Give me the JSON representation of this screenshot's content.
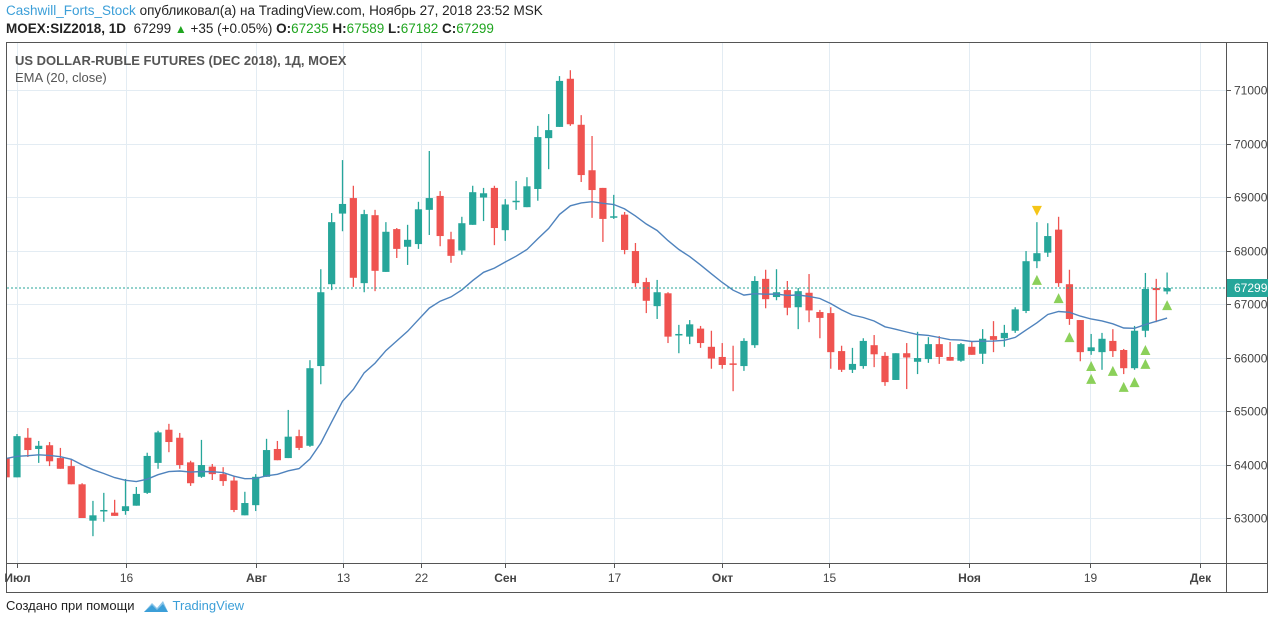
{
  "header": {
    "author": "Cashwill_Forts_Stock",
    "published_text": "опубликовал(а) на TradingView.com, Ноябрь 27, 2018 23:52 MSK",
    "symbol": "MOEX:SIZ2018, 1D",
    "last": "67299",
    "change": "+35 (+0.05%)",
    "o_label": "O:",
    "o": "67235",
    "h_label": "H:",
    "h": "67589",
    "l_label": "L:",
    "l": "67182",
    "c_label": "C:",
    "c": "67299"
  },
  "legend": {
    "title": "US DOLLAR-RUBLE FUTURES (DEC 2018), 1Д, MOEX",
    "indicator": "EMA (20, close)"
  },
  "footer": {
    "created_with": "Создано при помощи",
    "brand": "TradingView"
  },
  "colors": {
    "up": "#26a69a",
    "down": "#ef5350",
    "ema": "#4f83bd",
    "signal_up": "#8bd05a",
    "signal_down": "#f5c518",
    "grid": "#e3ecf3"
  },
  "chart_data": {
    "type": "candlestick",
    "title": "US DOLLAR-RUBLE FUTURES (DEC 2018), 1Д, MOEX",
    "ylim": [
      62300,
      71800
    ],
    "y_ticks": [
      63000,
      64000,
      65000,
      66000,
      67000,
      68000,
      69000,
      70000,
      71000
    ],
    "y_tick_labels": [
      "63000",
      "64000",
      "65000",
      "66000",
      "67000",
      "68000",
      "69000",
      "70000",
      "71000"
    ],
    "last_price": 67299,
    "last_price_label": "67299",
    "x_labels": [
      {
        "label": "Июл",
        "index": 0,
        "bold": true
      },
      {
        "label": "16",
        "index": 10,
        "bold": false
      },
      {
        "label": "Авг",
        "index": 22,
        "bold": true
      },
      {
        "label": "13",
        "index": 30,
        "bold": false
      },
      {
        "label": "22",
        "index": 37.2,
        "bold": false
      },
      {
        "label": "Сен",
        "index": 45,
        "bold": true
      },
      {
        "label": "17",
        "index": 55,
        "bold": false
      },
      {
        "label": "Окт",
        "index": 65,
        "bold": true
      },
      {
        "label": "15",
        "index": 74.8,
        "bold": false
      },
      {
        "label": "Ноя",
        "index": 87.7,
        "bold": true
      },
      {
        "label": "19",
        "index": 98.9,
        "bold": false
      },
      {
        "label": "Дек",
        "index": 109,
        "bold": true
      }
    ],
    "ema_period": 20,
    "ema_seed": 64150,
    "first_index": -1,
    "candles_ohlc": [
      [
        64120,
        64200,
        63700,
        63760
      ],
      [
        63760,
        64570,
        63760,
        64530
      ],
      [
        64500,
        64680,
        64140,
        64270
      ],
      [
        64290,
        64440,
        64030,
        64350
      ],
      [
        64360,
        64420,
        63970,
        64060
      ],
      [
        64120,
        64310,
        63920,
        63920
      ],
      [
        63970,
        64090,
        63630,
        63630
      ],
      [
        63630,
        63650,
        63000,
        63000
      ],
      [
        62950,
        63320,
        62660,
        63050
      ],
      [
        63130,
        63470,
        62930,
        63150
      ],
      [
        63100,
        63340,
        63040,
        63040
      ],
      [
        63130,
        63730,
        63060,
        63220
      ],
      [
        63230,
        63580,
        63230,
        63450
      ],
      [
        63470,
        64220,
        63450,
        64160
      ],
      [
        64030,
        64630,
        63920,
        64600
      ],
      [
        64650,
        64760,
        64230,
        64420
      ],
      [
        64500,
        64590,
        63920,
        63990
      ],
      [
        64040,
        64070,
        63600,
        63650
      ],
      [
        63770,
        64460,
        63750,
        63990
      ],
      [
        63960,
        64010,
        63710,
        63820
      ],
      [
        63820,
        63950,
        63600,
        63690
      ],
      [
        63700,
        63790,
        63110,
        63150
      ],
      [
        63050,
        63490,
        63050,
        63280
      ],
      [
        63240,
        63820,
        63130,
        63770
      ],
      [
        63770,
        64480,
        63770,
        64270
      ],
      [
        64290,
        64440,
        64080,
        64080
      ],
      [
        64120,
        65020,
        64120,
        64520
      ],
      [
        64530,
        64650,
        64270,
        64310
      ],
      [
        64350,
        65950,
        64330,
        65800
      ],
      [
        65840,
        67650,
        65500,
        67220
      ],
      [
        67370,
        68700,
        67260,
        68530
      ],
      [
        68690,
        69690,
        68360,
        68870
      ],
      [
        68980,
        69210,
        67320,
        67490
      ],
      [
        67390,
        68760,
        67220,
        68680
      ],
      [
        68660,
        68760,
        67240,
        67620
      ],
      [
        67600,
        68530,
        67600,
        68350
      ],
      [
        68400,
        68420,
        67860,
        68030
      ],
      [
        68070,
        68480,
        67730,
        68200
      ],
      [
        68120,
        68910,
        68030,
        68770
      ],
      [
        68760,
        69860,
        68290,
        68980
      ],
      [
        69020,
        69110,
        68080,
        68270
      ],
      [
        68210,
        68350,
        67770,
        67900
      ],
      [
        68000,
        68630,
        67920,
        68510
      ],
      [
        68480,
        69210,
        68480,
        69090
      ],
      [
        68990,
        69170,
        68550,
        69070
      ],
      [
        69170,
        69210,
        68100,
        68420
      ],
      [
        68380,
        68960,
        68180,
        68860
      ],
      [
        68910,
        69300,
        68760,
        68930
      ],
      [
        68810,
        69370,
        68810,
        69200
      ],
      [
        69150,
        70330,
        68930,
        70120
      ],
      [
        70100,
        70550,
        69520,
        70250
      ],
      [
        70310,
        71260,
        70310,
        71170
      ],
      [
        71210,
        71370,
        70330,
        70360
      ],
      [
        70350,
        70530,
        69280,
        69410
      ],
      [
        69500,
        70140,
        68610,
        69130
      ],
      [
        69170,
        69170,
        68160,
        68590
      ],
      [
        68620,
        69040,
        68590,
        68640
      ],
      [
        68670,
        68720,
        67930,
        68010
      ],
      [
        67990,
        68140,
        67320,
        67390
      ],
      [
        67410,
        67490,
        66830,
        67060
      ],
      [
        66960,
        67450,
        66720,
        67220
      ],
      [
        67200,
        67220,
        66270,
        66390
      ],
      [
        66420,
        66610,
        66080,
        66440
      ],
      [
        66390,
        66700,
        66250,
        66620
      ],
      [
        66540,
        66590,
        66180,
        66270
      ],
      [
        66200,
        66500,
        65790,
        65980
      ],
      [
        66010,
        66270,
        65790,
        65860
      ],
      [
        65890,
        66220,
        65370,
        65880
      ],
      [
        65840,
        66360,
        65750,
        66310
      ],
      [
        66230,
        67520,
        66180,
        67430
      ],
      [
        67470,
        67640,
        66920,
        67090
      ],
      [
        67130,
        67650,
        67070,
        67220
      ],
      [
        67260,
        67430,
        66790,
        66930
      ],
      [
        66940,
        67300,
        66530,
        67240
      ],
      [
        67210,
        67560,
        66660,
        66880
      ],
      [
        66850,
        66890,
        66360,
        66740
      ],
      [
        66830,
        66940,
        65790,
        66100
      ],
      [
        66120,
        66220,
        65730,
        65770
      ],
      [
        65770,
        66180,
        65710,
        65880
      ],
      [
        65840,
        66360,
        65790,
        66310
      ],
      [
        66230,
        66420,
        65820,
        66060
      ],
      [
        66030,
        66100,
        65470,
        65540
      ],
      [
        65580,
        66080,
        65580,
        66080
      ],
      [
        66080,
        66270,
        65410,
        66000
      ],
      [
        65920,
        66480,
        65690,
        65990
      ],
      [
        65970,
        66380,
        65900,
        66250
      ],
      [
        66250,
        66400,
        65880,
        66010
      ],
      [
        66010,
        66290,
        65940,
        65940
      ],
      [
        65940,
        66270,
        65920,
        66250
      ],
      [
        66200,
        66290,
        66050,
        66050
      ],
      [
        66070,
        66530,
        65880,
        66350
      ],
      [
        66400,
        66680,
        66100,
        66330
      ],
      [
        66360,
        66610,
        66200,
        66460
      ],
      [
        66500,
        66940,
        66460,
        66900
      ],
      [
        66870,
        67990,
        66830,
        67800
      ],
      [
        67800,
        68530,
        67670,
        67950
      ],
      [
        67960,
        68510,
        67880,
        68270
      ],
      [
        68390,
        68630,
        67320,
        67390
      ],
      [
        67370,
        67640,
        66610,
        66720
      ],
      [
        66700,
        66700,
        65930,
        66100
      ],
      [
        66120,
        66440,
        66050,
        66190
      ],
      [
        66100,
        66460,
        65770,
        66350
      ],
      [
        66310,
        66530,
        66010,
        66120
      ],
      [
        66140,
        66160,
        65690,
        65800
      ],
      [
        65800,
        66590,
        65770,
        66500
      ],
      [
        66500,
        67580,
        66380,
        67280
      ],
      [
        67300,
        67470,
        66660,
        67260
      ],
      [
        67235,
        67589,
        67182,
        67299
      ]
    ],
    "signals": [
      {
        "type": "down",
        "index": 94,
        "price": 68740
      },
      {
        "type": "up",
        "index": 94,
        "price": 67450
      },
      {
        "type": "up",
        "index": 96,
        "price": 67110
      },
      {
        "type": "up",
        "index": 97,
        "price": 66380
      },
      {
        "type": "up",
        "index": 99,
        "price": 65840
      },
      {
        "type": "up",
        "index": 99,
        "price": 65600
      },
      {
        "type": "up",
        "index": 101,
        "price": 65750
      },
      {
        "type": "up",
        "index": 102,
        "price": 65450
      },
      {
        "type": "up",
        "index": 103,
        "price": 65540
      },
      {
        "type": "up",
        "index": 104,
        "price": 66140
      },
      {
        "type": "up",
        "index": 104,
        "price": 65880
      },
      {
        "type": "up",
        "index": 106,
        "price": 66980
      }
    ]
  }
}
